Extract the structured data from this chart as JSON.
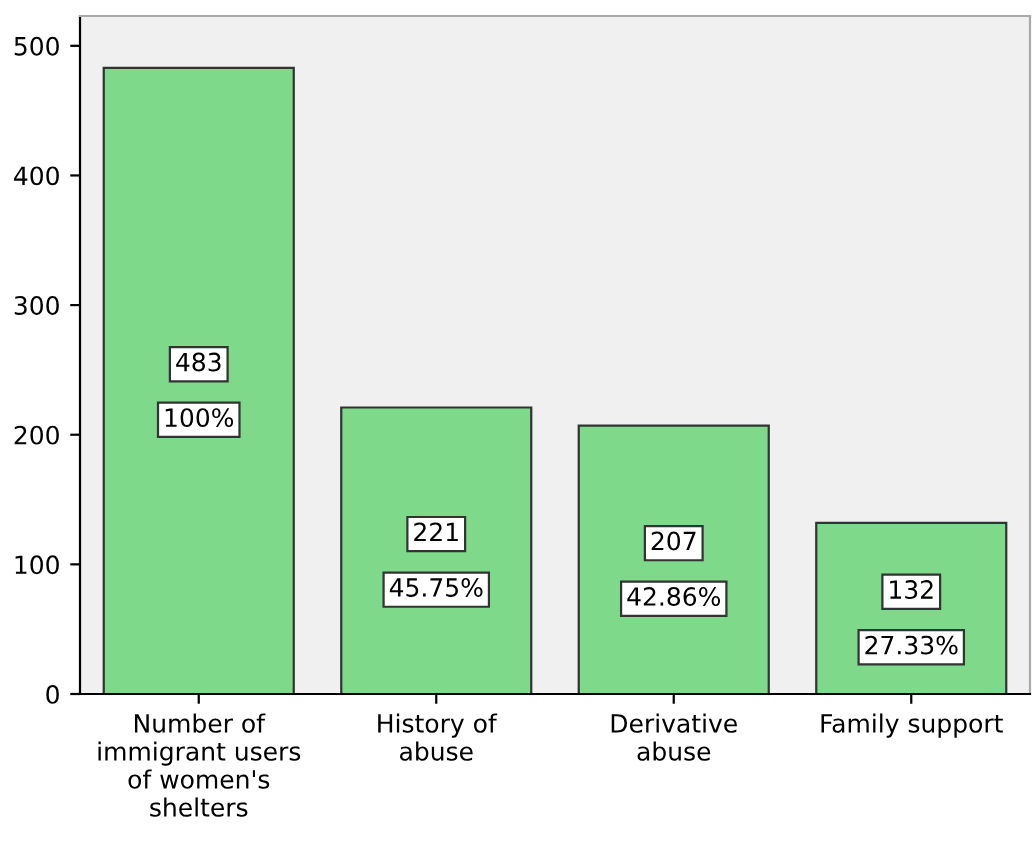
{
  "chart_data": {
    "type": "bar",
    "categories": [
      "Number of\nimmigrant users\nof women's\nshelters",
      "History of\nabuse",
      "Derivative\nabuse",
      "Family support"
    ],
    "values": [
      483,
      221,
      207,
      132
    ],
    "color": "#7ed98b",
    "data_labels": true,
    "annotations": [
      "100%",
      "45.75%",
      "42.86%",
      "27.33%"
    ],
    "ylim": [
      0,
      523
    ],
    "yticks": [
      0,
      100,
      200,
      300,
      400,
      500
    ],
    "grid": false,
    "legend": false
  }
}
